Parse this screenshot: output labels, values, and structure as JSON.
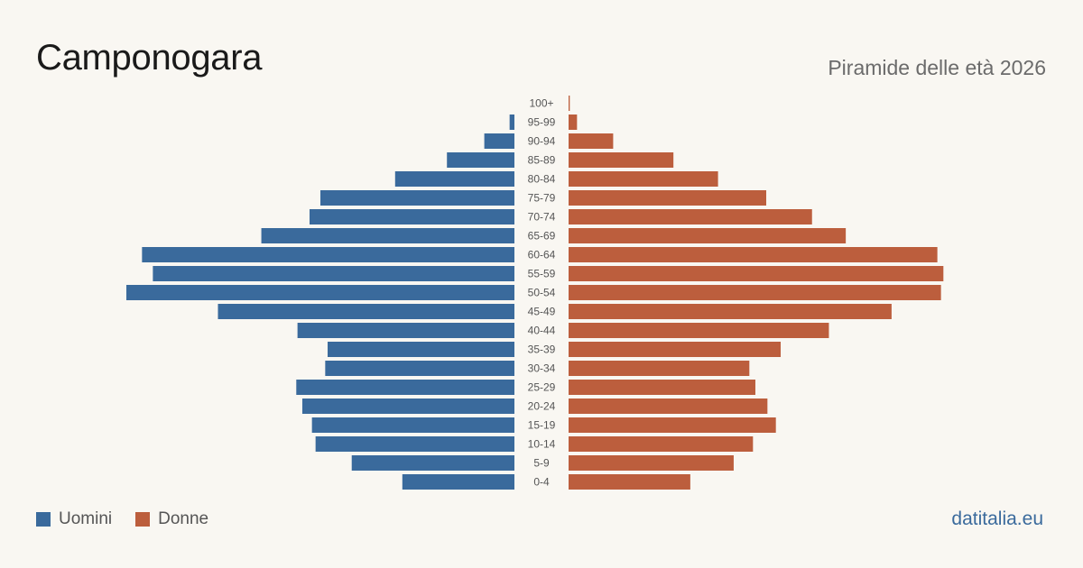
{
  "header": {
    "title": "Camponogara",
    "subtitle": "Piramide delle età 2026"
  },
  "legend": [
    {
      "label": "Uomini",
      "color": "#3a6a9c"
    },
    {
      "label": "Donne",
      "color": "#bc5e3d"
    }
  ],
  "brand": "datitalia.eu",
  "chart_data": {
    "type": "bar",
    "orientation": "horizontal-pyramid",
    "categories": [
      "100+",
      "95-99",
      "90-94",
      "85-89",
      "80-84",
      "75-79",
      "70-74",
      "65-69",
      "60-64",
      "55-59",
      "50-54",
      "45-49",
      "40-44",
      "35-39",
      "30-34",
      "25-29",
      "20-24",
      "15-19",
      "10-14",
      "5-9",
      "0-4"
    ],
    "series": [
      {
        "name": "Uomini",
        "color": "#3a6a9c",
        "values": [
          0,
          4,
          25,
          56,
          99,
          161,
          170,
          210,
          309,
          300,
          322,
          246,
          180,
          155,
          157,
          181,
          176,
          168,
          165,
          135,
          93
        ]
      },
      {
        "name": "Donne",
        "color": "#bc5e3d",
        "values": [
          1,
          7,
          37,
          87,
          124,
          164,
          202,
          230,
          306,
          311,
          309,
          268,
          216,
          176,
          150,
          155,
          165,
          172,
          153,
          137,
          101
        ]
      }
    ],
    "legend_position": "bottom-left",
    "grid": false,
    "axis_ticks": false
  }
}
